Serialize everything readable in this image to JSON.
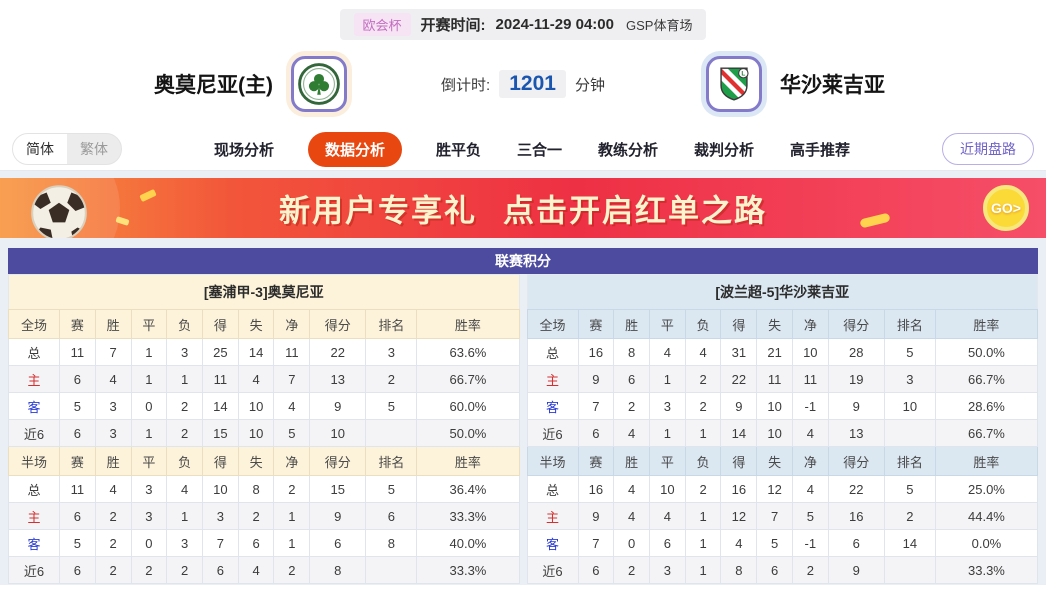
{
  "top_bar": {
    "competition": "欧会杯",
    "kickoff_label": "开赛时间:",
    "kickoff_time": "2024-11-29 04:00",
    "venue": "GSP体育场"
  },
  "match": {
    "home_name": "奥莫尼亚(主)",
    "away_name": "华沙莱吉亚",
    "countdown_label": "倒计时:",
    "countdown_value": "1201",
    "countdown_unit": "分钟"
  },
  "nav": {
    "lang": [
      {
        "label": "简体",
        "active": true
      },
      {
        "label": "繁体",
        "active": false
      }
    ],
    "tabs": [
      {
        "label": "现场分析",
        "active": false
      },
      {
        "label": "数据分析",
        "active": true
      },
      {
        "label": "胜平负",
        "active": false
      },
      {
        "label": "三合一",
        "active": false
      },
      {
        "label": "教练分析",
        "active": false
      },
      {
        "label": "裁判分析",
        "active": false
      },
      {
        "label": "高手推荐",
        "active": false
      }
    ],
    "recent_button": "近期盘路"
  },
  "banner": {
    "title": "新用户专享礼",
    "subtitle": "点击开启红单之路",
    "go_label": "GO>"
  },
  "standings": {
    "title": "联赛积分",
    "panels": [
      {
        "header": "[塞浦甲-3]奥莫尼亚",
        "theme": "cream",
        "sections": [
          {
            "label": "全场",
            "cols": [
              "赛",
              "胜",
              "平",
              "负",
              "得",
              "失",
              "净",
              "得分",
              "排名",
              "胜率"
            ],
            "rows": [
              {
                "label": "总",
                "type": "total",
                "values": [
                  "11",
                  "7",
                  "1",
                  "3",
                  "25",
                  "14",
                  "11",
                  "22",
                  "3",
                  "63.6%"
                ]
              },
              {
                "label": "主",
                "type": "home",
                "values": [
                  "6",
                  "4",
                  "1",
                  "1",
                  "11",
                  "4",
                  "7",
                  "13",
                  "2",
                  "66.7%"
                ]
              },
              {
                "label": "客",
                "type": "away",
                "values": [
                  "5",
                  "3",
                  "0",
                  "2",
                  "14",
                  "10",
                  "4",
                  "9",
                  "5",
                  "60.0%"
                ]
              },
              {
                "label": "近6",
                "type": "recent",
                "values": [
                  "6",
                  "3",
                  "1",
                  "2",
                  "15",
                  "10",
                  "5",
                  "10",
                  "",
                  "50.0%"
                ]
              }
            ]
          },
          {
            "label": "半场",
            "cols": [
              "赛",
              "胜",
              "平",
              "负",
              "得",
              "失",
              "净",
              "得分",
              "排名",
              "胜率"
            ],
            "rows": [
              {
                "label": "总",
                "type": "total",
                "values": [
                  "11",
                  "4",
                  "3",
                  "4",
                  "10",
                  "8",
                  "2",
                  "15",
                  "5",
                  "36.4%"
                ]
              },
              {
                "label": "主",
                "type": "home",
                "values": [
                  "6",
                  "2",
                  "3",
                  "1",
                  "3",
                  "2",
                  "1",
                  "9",
                  "6",
                  "33.3%"
                ]
              },
              {
                "label": "客",
                "type": "away",
                "values": [
                  "5",
                  "2",
                  "0",
                  "3",
                  "7",
                  "6",
                  "1",
                  "6",
                  "8",
                  "40.0%"
                ]
              },
              {
                "label": "近6",
                "type": "recent",
                "values": [
                  "6",
                  "2",
                  "2",
                  "2",
                  "6",
                  "4",
                  "2",
                  "8",
                  "",
                  "33.3%"
                ]
              }
            ]
          }
        ]
      },
      {
        "header": "[波兰超-5]华沙莱吉亚",
        "theme": "blue",
        "sections": [
          {
            "label": "全场",
            "cols": [
              "赛",
              "胜",
              "平",
              "负",
              "得",
              "失",
              "净",
              "得分",
              "排名",
              "胜率"
            ],
            "rows": [
              {
                "label": "总",
                "type": "total",
                "values": [
                  "16",
                  "8",
                  "4",
                  "4",
                  "31",
                  "21",
                  "10",
                  "28",
                  "5",
                  "50.0%"
                ]
              },
              {
                "label": "主",
                "type": "home",
                "values": [
                  "9",
                  "6",
                  "1",
                  "2",
                  "22",
                  "11",
                  "11",
                  "19",
                  "3",
                  "66.7%"
                ]
              },
              {
                "label": "客",
                "type": "away",
                "values": [
                  "7",
                  "2",
                  "3",
                  "2",
                  "9",
                  "10",
                  "-1",
                  "9",
                  "10",
                  "28.6%"
                ]
              },
              {
                "label": "近6",
                "type": "recent",
                "values": [
                  "6",
                  "4",
                  "1",
                  "1",
                  "14",
                  "10",
                  "4",
                  "13",
                  "",
                  "66.7%"
                ]
              }
            ]
          },
          {
            "label": "半场",
            "cols": [
              "赛",
              "胜",
              "平",
              "负",
              "得",
              "失",
              "净",
              "得分",
              "排名",
              "胜率"
            ],
            "rows": [
              {
                "label": "总",
                "type": "total",
                "values": [
                  "16",
                  "4",
                  "10",
                  "2",
                  "16",
                  "12",
                  "4",
                  "22",
                  "5",
                  "25.0%"
                ]
              },
              {
                "label": "主",
                "type": "home",
                "values": [
                  "9",
                  "4",
                  "4",
                  "1",
                  "12",
                  "7",
                  "5",
                  "16",
                  "2",
                  "44.4%"
                ]
              },
              {
                "label": "客",
                "type": "away",
                "values": [
                  "7",
                  "0",
                  "6",
                  "1",
                  "4",
                  "5",
                  "-1",
                  "6",
                  "14",
                  "0.0%"
                ]
              },
              {
                "label": "近6",
                "type": "recent",
                "values": [
                  "6",
                  "2",
                  "3",
                  "1",
                  "8",
                  "6",
                  "2",
                  "9",
                  "",
                  "33.3%"
                ]
              }
            ]
          }
        ]
      }
    ]
  },
  "colors": {
    "active_tab": "#e8470f",
    "standings_title_bar": "#4d4b9f",
    "home_label": "#d43030",
    "away_label": "#2a3bd4",
    "countdown_value": "#1a56b0",
    "panel_left_header_bg": "#fdf3da",
    "panel_right_header_bg": "#dbe7f1",
    "banner_gradient_start": "#f8953f",
    "banner_gradient_end": "#f64e68"
  }
}
